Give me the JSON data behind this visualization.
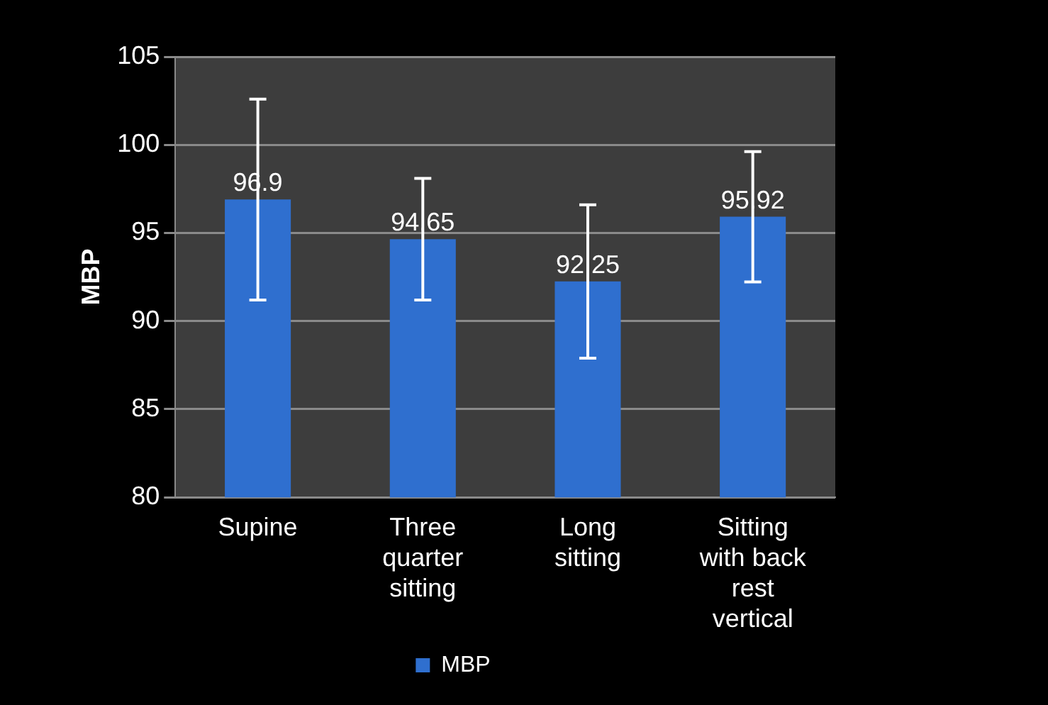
{
  "chart_data": {
    "type": "bar",
    "ylabel": "MBP",
    "categories": [
      "Supine",
      "Three quarter sitting",
      "Long sitting",
      "Sitting with back rest vertical"
    ],
    "series": [
      {
        "name": "MBP",
        "color": "#2f6fcf",
        "values": [
          96.9,
          94.65,
          92.25,
          95.92
        ],
        "errors": [
          5.7,
          3.45,
          4.35,
          3.7
        ]
      }
    ],
    "ylim": [
      80,
      105
    ],
    "yticks": [
      80,
      85,
      90,
      95,
      100,
      105
    ],
    "grid": "y",
    "legend": "bottom",
    "data_labels": true
  }
}
